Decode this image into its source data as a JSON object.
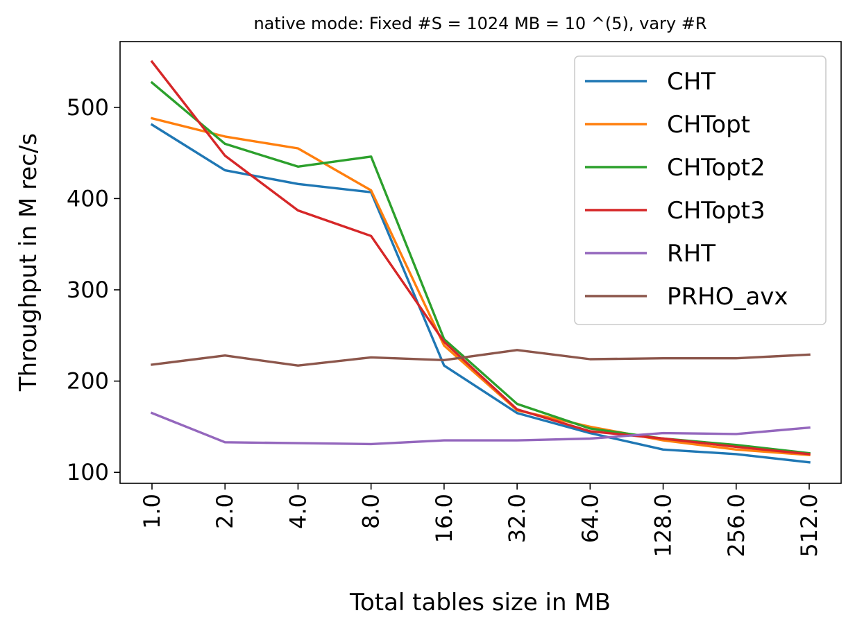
{
  "chart_data": {
    "type": "line",
    "title": "native mode: Fixed #S = 1024 MB = 10 ^(5), vary #R",
    "xlabel": "Total tables size in MB",
    "ylabel": "Throughput in M rec/s",
    "categories": [
      "1.0",
      "2.0",
      "4.0",
      "8.0",
      "16.0",
      "32.0",
      "64.0",
      "128.0",
      "256.0",
      "512.0"
    ],
    "yticks": [
      "100",
      "200",
      "300",
      "400",
      "500"
    ],
    "ylim": [
      88,
      572
    ],
    "grid": false,
    "legend_position": "top-right",
    "series": [
      {
        "name": "CHT",
        "color": "#1f77b4",
        "values": [
          481,
          431,
          416,
          407,
          217,
          165,
          143,
          125,
          120,
          111
        ]
      },
      {
        "name": "CHTopt",
        "color": "#ff7f0e",
        "values": [
          488,
          468,
          455,
          409,
          239,
          168,
          150,
          135,
          125,
          119
        ]
      },
      {
        "name": "CHTopt2",
        "color": "#2ca02c",
        "values": [
          527,
          460,
          435,
          446,
          246,
          175,
          148,
          137,
          130,
          121
        ]
      },
      {
        "name": "CHTopt3",
        "color": "#d62728",
        "values": [
          550,
          447,
          387,
          359,
          243,
          169,
          145,
          137,
          128,
          120
        ]
      },
      {
        "name": "RHT",
        "color": "#9467bd",
        "values": [
          165,
          133,
          132,
          131,
          135,
          135,
          137,
          143,
          142,
          149
        ]
      },
      {
        "name": "PRHO_avx",
        "color": "#8c564b",
        "values": [
          218,
          228,
          217,
          226,
          223,
          234,
          224,
          225,
          225,
          229
        ]
      }
    ]
  }
}
